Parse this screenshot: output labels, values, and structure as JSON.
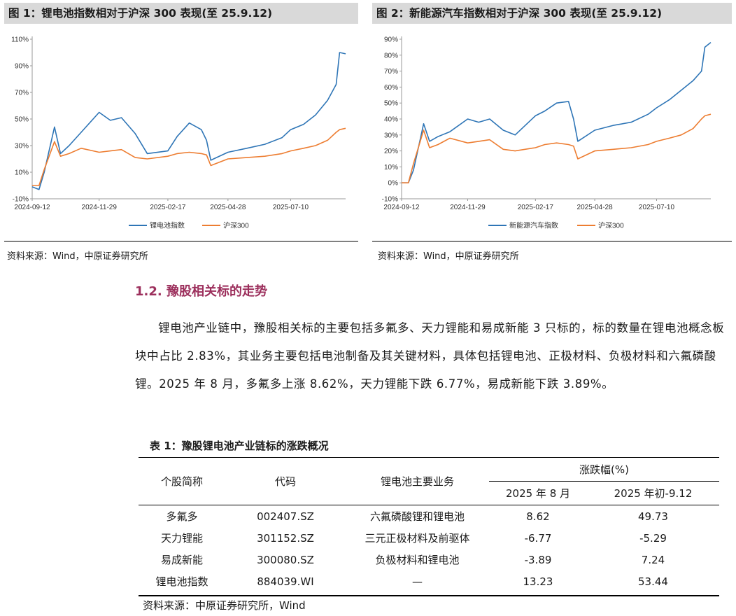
{
  "figure1": {
    "title": "图 1：锂电池指数相对于沪深 300 表现(至 25.9.12)",
    "source": "资料来源：Wind，中原证券研究所",
    "chart_data": {
      "type": "line",
      "x_ticks": [
        "2024-09-12",
        "2024-11-29",
        "2025-02-17",
        "2025-04-28",
        "2025-07-10"
      ],
      "y_ticks": [
        "110%",
        "90%",
        "70%",
        "50%",
        "30%",
        "10%",
        "-10%"
      ],
      "ylim": [
        -10,
        110
      ],
      "grid": false,
      "legend_position": "bottom",
      "series": [
        {
          "name": "锂电池指数",
          "color": "#2e75b6",
          "x": [
            "2024-09-12",
            "2024-09-20",
            "2024-09-26",
            "2024-10-08",
            "2024-10-15",
            "2024-10-25",
            "2024-11-08",
            "2024-11-29",
            "2024-12-12",
            "2024-12-25",
            "2025-01-10",
            "2025-01-24",
            "2025-02-17",
            "2025-02-28",
            "2025-03-14",
            "2025-03-28",
            "2025-04-03",
            "2025-04-08",
            "2025-04-28",
            "2025-05-20",
            "2025-06-10",
            "2025-06-30",
            "2025-07-10",
            "2025-07-25",
            "2025-08-08",
            "2025-08-22",
            "2025-09-01",
            "2025-09-05",
            "2025-09-12"
          ],
          "values": [
            -1,
            -3,
            10,
            44,
            24,
            30,
            40,
            55,
            49,
            51,
            39,
            24,
            26,
            37,
            47,
            42,
            34,
            19,
            25,
            28,
            31,
            36,
            42,
            46,
            53,
            64,
            76,
            100,
            99
          ]
        },
        {
          "name": "沪深300",
          "color": "#ed7d31",
          "x": [
            "2024-09-12",
            "2024-09-20",
            "2024-09-26",
            "2024-10-08",
            "2024-10-15",
            "2024-10-25",
            "2024-11-08",
            "2024-11-29",
            "2024-12-12",
            "2024-12-25",
            "2025-01-10",
            "2025-01-24",
            "2025-02-17",
            "2025-02-28",
            "2025-03-14",
            "2025-03-28",
            "2025-04-03",
            "2025-04-08",
            "2025-04-28",
            "2025-05-20",
            "2025-06-10",
            "2025-06-30",
            "2025-07-10",
            "2025-07-25",
            "2025-08-08",
            "2025-08-22",
            "2025-09-01",
            "2025-09-05",
            "2025-09-12"
          ],
          "values": [
            0,
            0,
            12,
            33,
            22,
            24,
            28,
            25,
            26,
            27,
            21,
            20,
            22,
            24,
            25,
            24,
            23,
            15,
            20,
            21,
            22,
            24,
            26,
            28,
            30,
            34,
            40,
            42,
            43
          ]
        }
      ]
    }
  },
  "figure2": {
    "title": "图 2：新能源汽车指数相对于沪深 300 表现(至 25.9.12)",
    "source": "资料来源：Wind，中原证券研究所",
    "chart_data": {
      "type": "line",
      "x_ticks": [
        "2024-09-12",
        "2024-11-29",
        "2025-02-17",
        "2025-04-28",
        "2025-07-10"
      ],
      "y_ticks": [
        "90%",
        "80%",
        "70%",
        "60%",
        "50%",
        "40%",
        "30%",
        "20%",
        "10%",
        "0%",
        "-10%"
      ],
      "ylim": [
        -10,
        90
      ],
      "grid": false,
      "legend_position": "bottom",
      "series": [
        {
          "name": "新能源汽车指数",
          "color": "#2e75b6",
          "x": [
            "2024-09-12",
            "2024-09-20",
            "2024-09-26",
            "2024-10-08",
            "2024-10-15",
            "2024-10-25",
            "2024-11-08",
            "2024-11-29",
            "2024-12-12",
            "2024-12-25",
            "2025-01-10",
            "2025-01-24",
            "2025-02-17",
            "2025-02-28",
            "2025-03-14",
            "2025-03-28",
            "2025-04-03",
            "2025-04-08",
            "2025-04-28",
            "2025-05-20",
            "2025-06-10",
            "2025-06-30",
            "2025-07-10",
            "2025-07-25",
            "2025-08-08",
            "2025-08-22",
            "2025-09-01",
            "2025-09-05",
            "2025-09-12"
          ],
          "values": [
            0,
            0,
            8,
            37,
            26,
            29,
            32,
            40,
            38,
            40,
            33,
            30,
            42,
            45,
            50,
            51,
            40,
            26,
            33,
            36,
            38,
            43,
            47,
            52,
            58,
            64,
            70,
            85,
            88
          ]
        },
        {
          "name": "沪深300",
          "color": "#ed7d31",
          "x": [
            "2024-09-12",
            "2024-09-20",
            "2024-09-26",
            "2024-10-08",
            "2024-10-15",
            "2024-10-25",
            "2024-11-08",
            "2024-11-29",
            "2024-12-12",
            "2024-12-25",
            "2025-01-10",
            "2025-01-24",
            "2025-02-17",
            "2025-02-28",
            "2025-03-14",
            "2025-03-28",
            "2025-04-03",
            "2025-04-08",
            "2025-04-28",
            "2025-05-20",
            "2025-06-10",
            "2025-06-30",
            "2025-07-10",
            "2025-07-25",
            "2025-08-08",
            "2025-08-22",
            "2025-09-01",
            "2025-09-05",
            "2025-09-12"
          ],
          "values": [
            0,
            0,
            12,
            33,
            22,
            24,
            28,
            25,
            26,
            27,
            21,
            20,
            22,
            24,
            25,
            24,
            23,
            15,
            20,
            21,
            22,
            24,
            26,
            28,
            30,
            34,
            40,
            42,
            43
          ]
        }
      ]
    }
  },
  "section": {
    "heading": "1.2. 豫股相关标的走势",
    "paragraph": "锂电池产业链中，豫股相关标的主要包括多氟多、天力锂能和易成新能 3 只标的，标的数量在锂电池概念板块中占比 2.83%，其业务主要包括电池制备及其关键材料，具体包括锂电池、正极材料、负极材料和六氟磷酸锂。2025 年 8 月，多氟多上涨 8.62%，天力锂能下跌 6.77%，易成新能下跌 3.89%。"
  },
  "table": {
    "title": "表 1：豫股锂电池产业链标的涨跌概况",
    "headers": {
      "name": "个股简称",
      "code": "代码",
      "business": "锂电池主要业务",
      "change_group": "涨跌幅(%)",
      "aug": "2025 年 8 月",
      "ytd": "2025 年初-9.12"
    },
    "rows": [
      {
        "name": "多氟多",
        "code": "002407.SZ",
        "business": "六氟磷酸锂和锂电池",
        "aug": "8.62",
        "ytd": "49.73"
      },
      {
        "name": "天力锂能",
        "code": "301152.SZ",
        "business": "三元正极材料及前驱体",
        "aug": "-6.77",
        "ytd": "-5.29"
      },
      {
        "name": "易成新能",
        "code": "300080.SZ",
        "business": "负极材料和锂电池",
        "aug": "-3.89",
        "ytd": "7.24"
      },
      {
        "name": "锂电池指数",
        "code": "884039.WI",
        "business": "—",
        "aug": "13.23",
        "ytd": "53.44"
      }
    ],
    "source": "资料来源：中原证券研究所，Wind"
  }
}
